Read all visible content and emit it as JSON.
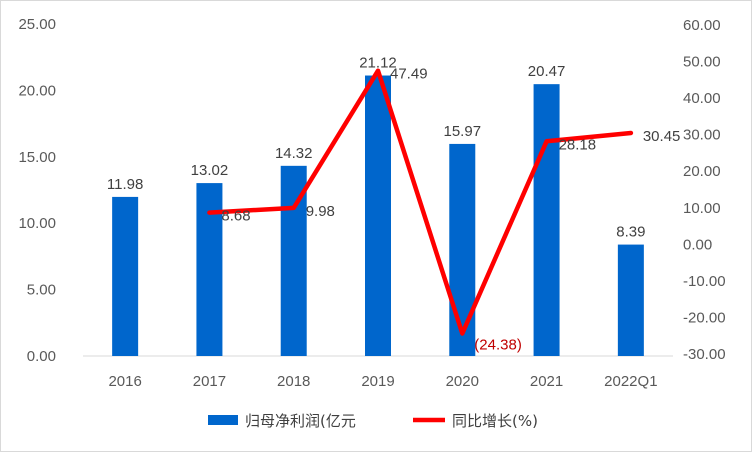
{
  "chart_data": {
    "type": "bar",
    "categories": [
      "2016",
      "2017",
      "2018",
      "2019",
      "2020",
      "2021",
      "2022Q1"
    ],
    "series": [
      {
        "name": "归母净利润(亿元",
        "type": "bar",
        "axis": "left",
        "values": [
          11.98,
          13.02,
          14.32,
          21.12,
          15.97,
          20.47,
          8.39
        ],
        "labels": [
          "11.98",
          "13.02",
          "14.32",
          "21.12",
          "15.97",
          "20.47",
          "8.39"
        ],
        "color": "#0066cc"
      },
      {
        "name": "同比增长(%)",
        "type": "line",
        "axis": "right",
        "values": [
          null,
          8.68,
          9.98,
          47.49,
          -24.38,
          28.18,
          30.45
        ],
        "labels": [
          "",
          "8.68",
          "9.98",
          "47.49",
          "(24.38)",
          "28.18",
          "30.45"
        ],
        "color": "#ff0000",
        "negative_label_color": "#c00000"
      }
    ],
    "y_left": {
      "ylim": [
        0,
        25
      ],
      "ticks": [
        0,
        5,
        10,
        15,
        20,
        25
      ],
      "tick_labels": [
        "0.00",
        "5.00",
        "10.00",
        "15.00",
        "20.00",
        "25.00"
      ]
    },
    "y_right": {
      "ylim": [
        -30,
        60
      ],
      "ticks": [
        -30,
        -20,
        -10,
        0,
        10,
        20,
        30,
        40,
        50,
        60
      ],
      "tick_labels": [
        "-30.00",
        "-20.00",
        "-10.00",
        "0.00",
        "10.00",
        "20.00",
        "30.00",
        "40.00",
        "50.00",
        "60.00"
      ]
    },
    "grid": false,
    "legend_position": "bottom"
  }
}
